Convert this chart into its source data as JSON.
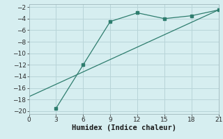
{
  "line1_x": [
    3,
    6,
    9,
    12,
    15,
    18,
    21
  ],
  "line1_y": [
    -19.5,
    -12,
    -4.5,
    -3,
    -4,
    -3.5,
    -2.5
  ],
  "line2_x": [
    0,
    21
  ],
  "line2_y": [
    -17.5,
    -2.5
  ],
  "color": "#2e7d6e",
  "bg_color": "#d6eef0",
  "grid_color_major": "#b8d4d8",
  "grid_color_minor": "#c8e0e4",
  "xlabel": "Humidex (Indice chaleur)",
  "xlim": [
    0,
    21
  ],
  "ylim": [
    -20.5,
    -1.5
  ],
  "xticks": [
    0,
    3,
    6,
    9,
    12,
    15,
    18,
    21
  ],
  "yticks": [
    -20,
    -18,
    -16,
    -14,
    -12,
    -10,
    -8,
    -6,
    -4,
    -2
  ],
  "tick_fontsize": 6.5,
  "xlabel_fontsize": 7.5
}
